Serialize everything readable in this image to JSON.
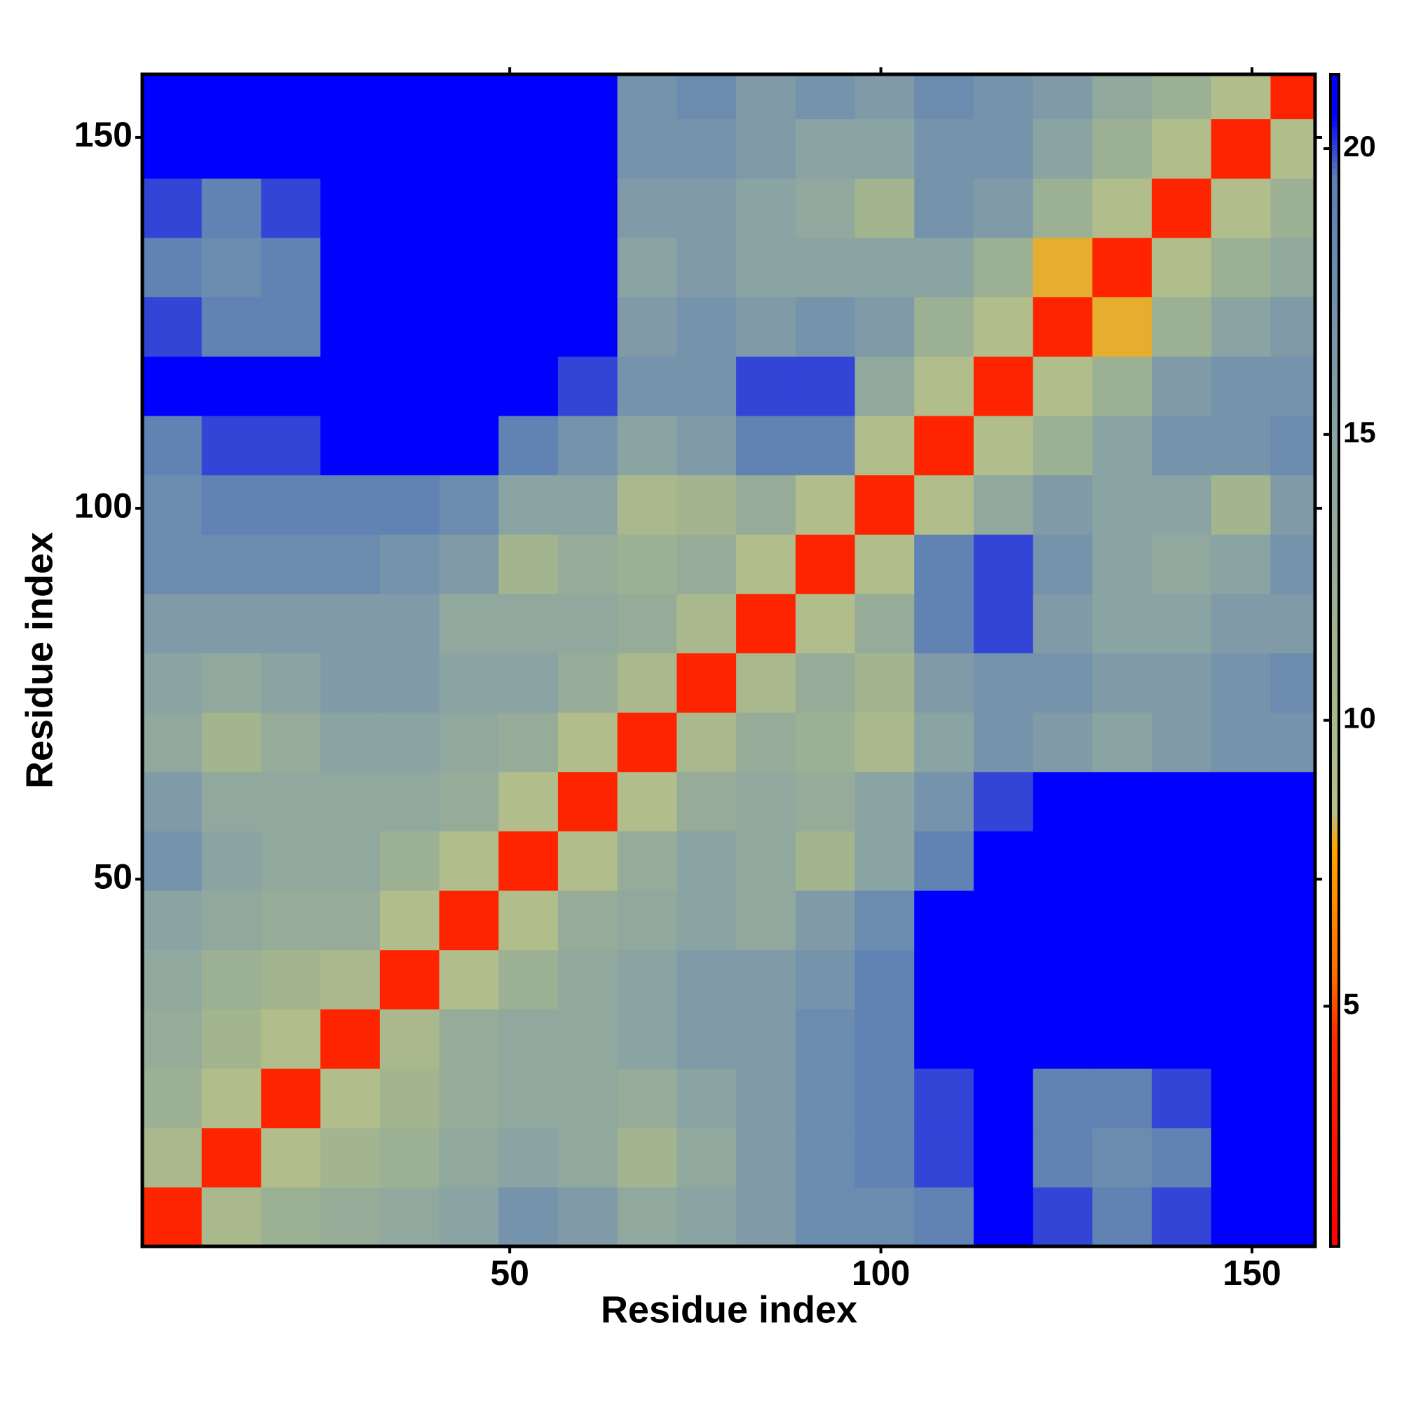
{
  "chart_data": {
    "type": "heatmap",
    "x_label": "Residue index",
    "y_label": "Residue index",
    "xbins": [
      0.5,
      8.5,
      16.5,
      24.5,
      32.5,
      40.5,
      48.5,
      56.5,
      64.5,
      72.5,
      80.5,
      88.5,
      96.5,
      104.5,
      112.5,
      120.5,
      128.5,
      136.5,
      144.5,
      152.5,
      158.5
    ],
    "ybins": [
      0.5,
      8.5,
      16.5,
      24.5,
      32.5,
      40.5,
      48.5,
      56.5,
      64.5,
      72.5,
      80.5,
      88.5,
      96.5,
      104.5,
      112.5,
      120.5,
      128.5,
      136.5,
      144.5,
      152.5,
      158.5
    ],
    "z": [
      [
        4,
        10,
        12,
        13,
        14,
        15,
        17,
        16,
        14,
        15,
        16,
        18,
        18,
        19,
        21,
        20,
        19,
        20,
        21,
        21
      ],
      [
        10,
        4,
        9,
        11,
        12,
        14,
        15,
        14,
        11,
        14,
        16,
        18,
        19,
        20,
        21,
        19,
        18,
        19,
        21,
        21
      ],
      [
        12,
        9,
        4,
        9,
        11,
        13,
        14,
        14,
        13,
        15,
        16,
        18,
        19,
        20,
        21,
        19,
        19,
        20,
        21,
        21
      ],
      [
        13,
        11,
        9,
        4,
        10,
        13,
        14,
        14,
        15,
        16,
        16,
        18,
        19,
        21,
        21,
        21,
        21,
        21,
        21,
        21
      ],
      [
        14,
        12,
        11,
        10,
        4,
        9,
        12,
        14,
        15,
        16,
        16,
        17,
        19,
        21,
        21,
        21,
        21,
        21,
        21,
        21
      ],
      [
        15,
        14,
        13,
        13,
        9,
        4,
        9,
        13,
        14,
        15,
        14,
        16,
        18,
        21,
        21,
        21,
        21,
        21,
        21,
        21
      ],
      [
        17,
        15,
        14,
        14,
        12,
        9,
        4,
        9,
        13,
        15,
        14,
        11,
        15,
        19,
        21,
        21,
        21,
        21,
        21,
        21
      ],
      [
        16,
        14,
        14,
        14,
        14,
        13,
        9,
        4,
        9,
        13,
        14,
        13,
        15,
        17,
        20,
        21,
        21,
        21,
        21,
        21
      ],
      [
        14,
        11,
        13,
        15,
        15,
        14,
        13,
        9,
        4,
        10,
        13,
        12,
        10,
        15,
        17,
        16,
        15,
        16,
        17,
        17
      ],
      [
        15,
        14,
        15,
        16,
        16,
        15,
        15,
        13,
        10,
        4,
        10,
        13,
        11,
        16,
        17,
        17,
        16,
        16,
        17,
        18
      ],
      [
        16,
        16,
        16,
        16,
        16,
        14,
        14,
        14,
        13,
        10,
        4,
        9,
        13,
        19,
        20,
        16,
        15,
        15,
        16,
        16
      ],
      [
        18,
        18,
        18,
        18,
        17,
        16,
        11,
        13,
        12,
        13,
        9,
        4,
        9,
        19,
        20,
        17,
        15,
        14,
        15,
        17
      ],
      [
        18,
        19,
        19,
        19,
        19,
        18,
        15,
        15,
        10,
        11,
        13,
        9,
        4,
        9,
        14,
        16,
        15,
        15,
        11,
        16
      ],
      [
        19,
        20,
        20,
        21,
        21,
        21,
        19,
        17,
        15,
        16,
        19,
        19,
        9,
        4,
        9,
        12,
        15,
        17,
        17,
        18
      ],
      [
        21,
        21,
        21,
        21,
        21,
        21,
        21,
        20,
        17,
        17,
        20,
        20,
        14,
        9,
        4,
        9,
        12,
        16,
        17,
        17
      ],
      [
        20,
        19,
        19,
        21,
        21,
        21,
        21,
        21,
        16,
        17,
        16,
        17,
        16,
        12,
        9,
        4,
        8,
        12,
        15,
        16
      ],
      [
        19,
        18,
        19,
        21,
        21,
        21,
        21,
        21,
        15,
        16,
        15,
        15,
        15,
        15,
        12,
        8,
        4,
        9,
        12,
        14
      ],
      [
        20,
        19,
        20,
        21,
        21,
        21,
        21,
        21,
        16,
        16,
        15,
        14,
        11,
        17,
        16,
        12,
        9,
        4,
        9,
        12
      ],
      [
        21,
        21,
        21,
        21,
        21,
        21,
        21,
        21,
        17,
        17,
        16,
        15,
        15,
        17,
        17,
        15,
        12,
        9,
        4,
        9
      ],
      [
        21,
        21,
        21,
        21,
        21,
        21,
        21,
        21,
        17,
        18,
        16,
        17,
        16,
        18,
        17,
        16,
        14,
        12,
        9,
        4
      ]
    ],
    "xlim": [
      0.5,
      158.5
    ],
    "ylim": [
      0.5,
      158.5
    ],
    "xticks": [
      50,
      100,
      150
    ],
    "yticks": [
      50,
      100,
      150
    ],
    "zlim": [
      0.8,
      21.3
    ],
    "zticks": [
      5,
      10,
      15,
      20
    ],
    "colormap": [
      {
        "value": 0.8,
        "color": "#ff0000"
      },
      {
        "value": 4.5,
        "color": "#ff2a00"
      },
      {
        "value": 5.5,
        "color": "#ff6a00"
      },
      {
        "value": 7.8,
        "color": "#ffa500"
      },
      {
        "value": 8.4,
        "color": "#b5c08a"
      },
      {
        "value": 11,
        "color": "#a2b58f"
      },
      {
        "value": 15,
        "color": "#8aa3a3"
      },
      {
        "value": 19.5,
        "color": "#5b7fb5"
      },
      {
        "value": 20.6,
        "color": "#0000ff"
      },
      {
        "value": 21.3,
        "color": "#0000ff"
      }
    ]
  }
}
